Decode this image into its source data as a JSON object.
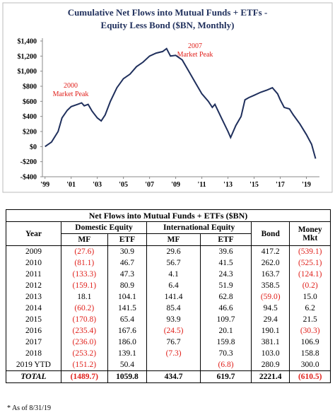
{
  "chart_data": {
    "type": "line",
    "title": [
      "Cumulative Net Flows into Mutual Funds + ETFs -",
      "Equity Less Bond ($BN, Monthly)"
    ],
    "color": "#1f2f5c",
    "x": [
      1999.0,
      1999.5,
      2000.0,
      2000.3,
      2000.7,
      2001.0,
      2001.5,
      2001.8,
      2002.0,
      2002.3,
      2002.6,
      2003.0,
      2003.3,
      2003.6,
      2004.0,
      2004.5,
      2005.0,
      2005.5,
      2006.0,
      2006.5,
      2007.0,
      2007.5,
      2008.0,
      2008.3,
      2008.6,
      2009.0,
      2009.5,
      2010.0,
      2010.5,
      2011.0,
      2011.5,
      2011.8,
      2012.0,
      2012.5,
      2013.0,
      2013.2,
      2013.6,
      2014.0,
      2014.3,
      2014.6,
      2015.0,
      2015.5,
      2016.0,
      2016.4,
      2016.8,
      2017.0,
      2017.3,
      2017.7,
      2018.0,
      2018.5,
      2019.0,
      2019.4,
      2019.7
    ],
    "values": [
      0,
      60,
      200,
      380,
      480,
      530,
      560,
      580,
      540,
      560,
      470,
      380,
      340,
      420,
      600,
      780,
      900,
      960,
      1060,
      1120,
      1200,
      1240,
      1260,
      1300,
      1200,
      1210,
      1150,
      1000,
      850,
      700,
      600,
      520,
      560,
      380,
      200,
      120,
      280,
      400,
      620,
      650,
      680,
      720,
      750,
      780,
      700,
      620,
      520,
      500,
      420,
      300,
      160,
      30,
      -160
    ],
    "xlim": [
      1998.8,
      2020.0
    ],
    "xticks": [
      {
        "value": 1999,
        "label": "'99"
      },
      {
        "value": 2001,
        "label": "'01"
      },
      {
        "value": 2003,
        "label": "'03"
      },
      {
        "value": 2005,
        "label": "'05"
      },
      {
        "value": 2007,
        "label": "'07"
      },
      {
        "value": 2009,
        "label": "'09"
      },
      {
        "value": 2011,
        "label": "'11"
      },
      {
        "value": 2013,
        "label": "'13"
      },
      {
        "value": 2015,
        "label": "'15"
      },
      {
        "value": 2017,
        "label": "'17"
      },
      {
        "value": 2019,
        "label": "'19"
      }
    ],
    "ylim": [
      -400,
      1400
    ],
    "yticks": [
      {
        "value": -400,
        "label": "-$400"
      },
      {
        "value": -200,
        "label": "-$200"
      },
      {
        "value": 0,
        "label": "$0"
      },
      {
        "value": 200,
        "label": "$200"
      },
      {
        "value": 400,
        "label": "$400"
      },
      {
        "value": 600,
        "label": "$600"
      },
      {
        "value": 800,
        "label": "$800"
      },
      {
        "value": 1000,
        "label": "$1,000"
      },
      {
        "value": 1200,
        "label": "$1,200"
      },
      {
        "value": 1400,
        "label": "$1,400"
      }
    ],
    "annotations": [
      [
        "2000",
        "Market Peak"
      ],
      [
        "2007",
        "Market Peak"
      ]
    ]
  },
  "table": {
    "title": "Net Flows into Mutual Funds + ETFs ($BN)",
    "groups": [
      "Domestic Equity",
      "International Equity"
    ],
    "year_header": "Year",
    "bond_header": "Bond",
    "mm_header": [
      "Money",
      "Mkt"
    ],
    "subheaders": [
      "MF",
      "ETF",
      "MF",
      "ETF"
    ],
    "rows": [
      [
        "2009",
        "(27.6)",
        "30.9",
        "29.6",
        "39.6",
        "417.2",
        "(539.1)"
      ],
      [
        "2010",
        "(81.1)",
        "46.7",
        "56.7",
        "41.5",
        "262.0",
        "(525.1)"
      ],
      [
        "2011",
        "(133.3)",
        "47.3",
        "4.1",
        "24.3",
        "163.7",
        "(124.1)"
      ],
      [
        "2012",
        "(159.1)",
        "80.9",
        "6.4",
        "51.9",
        "358.5",
        "(0.2)"
      ],
      [
        "2013",
        "18.1",
        "104.1",
        "141.4",
        "62.8",
        "(59.0)",
        "15.0"
      ],
      [
        "2014",
        "(60.2)",
        "141.5",
        "85.4",
        "46.6",
        "94.5",
        "6.2"
      ],
      [
        "2015",
        "(170.8)",
        "65.4",
        "93.9",
        "109.7",
        "29.4",
        "21.5"
      ],
      [
        "2016",
        "(235.4)",
        "167.6",
        "(24.5)",
        "20.1",
        "190.1",
        "(30.3)"
      ],
      [
        "2017",
        "(236.0)",
        "186.0",
        "76.7",
        "159.8",
        "381.1",
        "106.9"
      ],
      [
        "2018",
        "(253.2)",
        "139.1",
        "(7.3)",
        "70.3",
        "103.0",
        "158.8"
      ],
      [
        "2019 YTD",
        "(151.2)",
        "50.4",
        null,
        "(6.8)",
        "280.9",
        "300.0"
      ]
    ],
    "total": [
      "TOTAL",
      "(1489.7)",
      "1059.8",
      "434.7",
      "619.7",
      "2221.4",
      "(610.5)"
    ]
  },
  "footnote": "* As of 8/31/19"
}
